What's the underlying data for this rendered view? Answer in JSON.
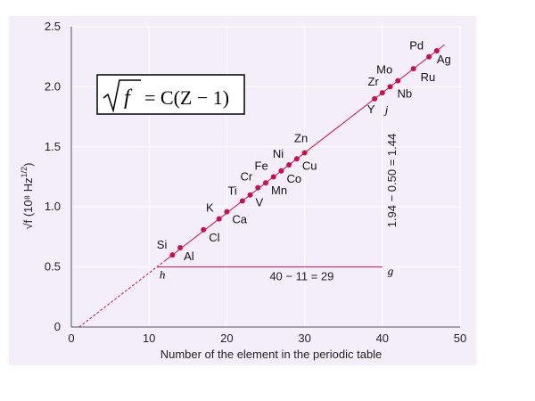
{
  "colors": {
    "panel": "#f4eef9",
    "accent": "#c4124e",
    "grid": "#ffffff",
    "axis": "#555555"
  },
  "equation": {
    "text_lhs": "f",
    "text_rhs": "= C(Z − 1)"
  },
  "chart_data": {
    "type": "scatter",
    "xlabel": "Number of the element in the periodic table",
    "ylabel": "√f (10⁸ Hz",
    "ylabel_exp": "1/2",
    "ylabel_close": ")",
    "xlim": [
      0,
      50
    ],
    "ylim": [
      0,
      2.5
    ],
    "x_ticks": [
      0,
      10,
      20,
      30,
      40,
      50
    ],
    "y_ticks": [
      "0",
      "0.5",
      "1.0",
      "1.5",
      "2.0",
      "2.5"
    ],
    "grid": true,
    "fit_line": {
      "slope": 0.05,
      "intercept": -0.05,
      "x_range": [
        1,
        48
      ]
    },
    "points": [
      {
        "label": "Si",
        "x": 13,
        "y": 0.6
      },
      {
        "label": "Al",
        "x": 14,
        "y": 0.66
      },
      {
        "label": "Cl",
        "x": 17,
        "y": 0.81
      },
      {
        "label": "K",
        "x": 19,
        "y": 0.9
      },
      {
        "label": "Ca",
        "x": 20,
        "y": 0.96
      },
      {
        "label": "Ti",
        "x": 22,
        "y": 1.05
      },
      {
        "label": "V",
        "x": 23,
        "y": 1.1
      },
      {
        "label": "Cr",
        "x": 24,
        "y": 1.16
      },
      {
        "label": "Mn",
        "x": 25,
        "y": 1.2
      },
      {
        "label": "Fe",
        "x": 26,
        "y": 1.25
      },
      {
        "label": "Co",
        "x": 27,
        "y": 1.3
      },
      {
        "label": "Ni",
        "x": 28,
        "y": 1.35
      },
      {
        "label": "Cu",
        "x": 29,
        "y": 1.4
      },
      {
        "label": "Zn",
        "x": 30,
        "y": 1.45
      },
      {
        "label": "Y",
        "x": 39,
        "y": 1.9
      },
      {
        "label": "Zr",
        "x": 40,
        "y": 1.95
      },
      {
        "label": "Nb",
        "x": 41,
        "y": 2.0
      },
      {
        "label": "Mo",
        "x": 42,
        "y": 2.05
      },
      {
        "label": "Ru",
        "x": 44,
        "y": 2.15
      },
      {
        "label": "Pd",
        "x": 46,
        "y": 2.25
      },
      {
        "label": "Ag",
        "x": 47,
        "y": 2.3
      }
    ],
    "annotations": {
      "horizontal": {
        "from": "h",
        "to": "g",
        "text": "40 − 11 = 29",
        "y": 0.5,
        "x_range": [
          11,
          40
        ]
      },
      "vertical": {
        "at": "j",
        "text": "1.94 − 0.50 = 1.44",
        "x": 40,
        "y_range": [
          0.5,
          1.94
        ]
      }
    }
  }
}
